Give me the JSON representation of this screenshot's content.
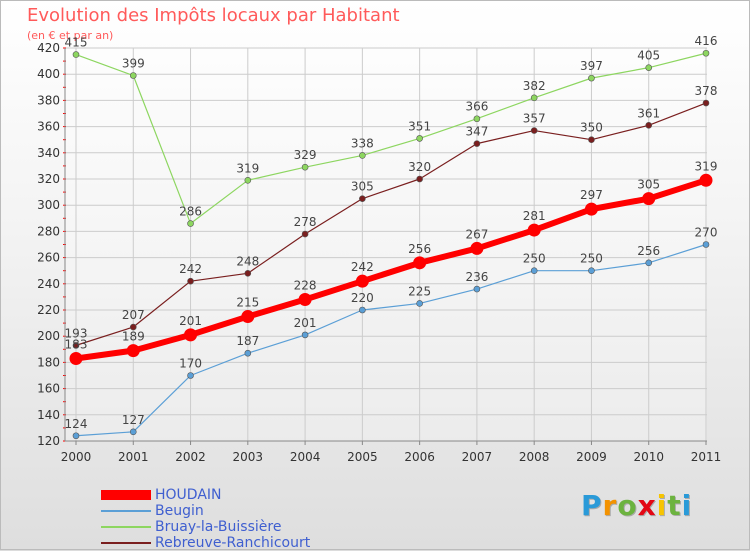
{
  "title": "Evolution des Impôts locaux par Habitant",
  "subtitle": "(en € et par an)",
  "logo": [
    "P",
    "r",
    "o",
    "x",
    "i",
    "t",
    "i"
  ],
  "logo_colors": [
    "#2a9ad8",
    "#f39200",
    "#6cb33f",
    "#e30613",
    "#f7c400",
    "#6cb33f",
    "#2a9ad8"
  ],
  "chart_data": {
    "type": "line",
    "categories": [
      "2000",
      "2001",
      "2002",
      "2003",
      "2004",
      "2005",
      "2006",
      "2007",
      "2008",
      "2009",
      "2010",
      "2011"
    ],
    "ylim": [
      120,
      420
    ],
    "yticks": [
      120,
      140,
      160,
      180,
      200,
      220,
      240,
      260,
      280,
      300,
      320,
      340,
      360,
      380,
      400,
      420
    ],
    "grid": true,
    "legend_position": "bottom-left",
    "series": [
      {
        "name": "HOUDAIN",
        "color": "#ff0000",
        "emphasis": true,
        "values": [
          183,
          189,
          201,
          215,
          228,
          242,
          256,
          267,
          281,
          297,
          305,
          319
        ]
      },
      {
        "name": "Beugin",
        "color": "#5b9fd6",
        "emphasis": false,
        "values": [
          124,
          127,
          170,
          187,
          201,
          220,
          225,
          236,
          250,
          250,
          256,
          270
        ]
      },
      {
        "name": "Bruay-la-Buissière",
        "color": "#8dd660",
        "emphasis": false,
        "values": [
          415,
          399,
          286,
          319,
          329,
          338,
          351,
          366,
          382,
          397,
          405,
          416
        ]
      },
      {
        "name": "Rebreuve-Ranchicourt",
        "color": "#7a1f1f",
        "emphasis": false,
        "values": [
          193,
          207,
          242,
          248,
          278,
          305,
          320,
          347,
          357,
          350,
          361,
          378
        ]
      }
    ]
  }
}
